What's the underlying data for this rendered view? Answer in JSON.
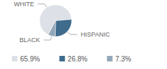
{
  "chart_data": {
    "type": "pie",
    "categories": [
      "WHITE",
      "HISPANIC",
      "BLACK"
    ],
    "values": [
      65.9,
      26.8,
      7.3
    ],
    "value_labels": [
      "65.9%",
      "26.8%",
      "7.3%"
    ],
    "colors": [
      "#dde1e7",
      "#3f6b8c",
      "#93a8b9"
    ],
    "legend": "bottom"
  }
}
